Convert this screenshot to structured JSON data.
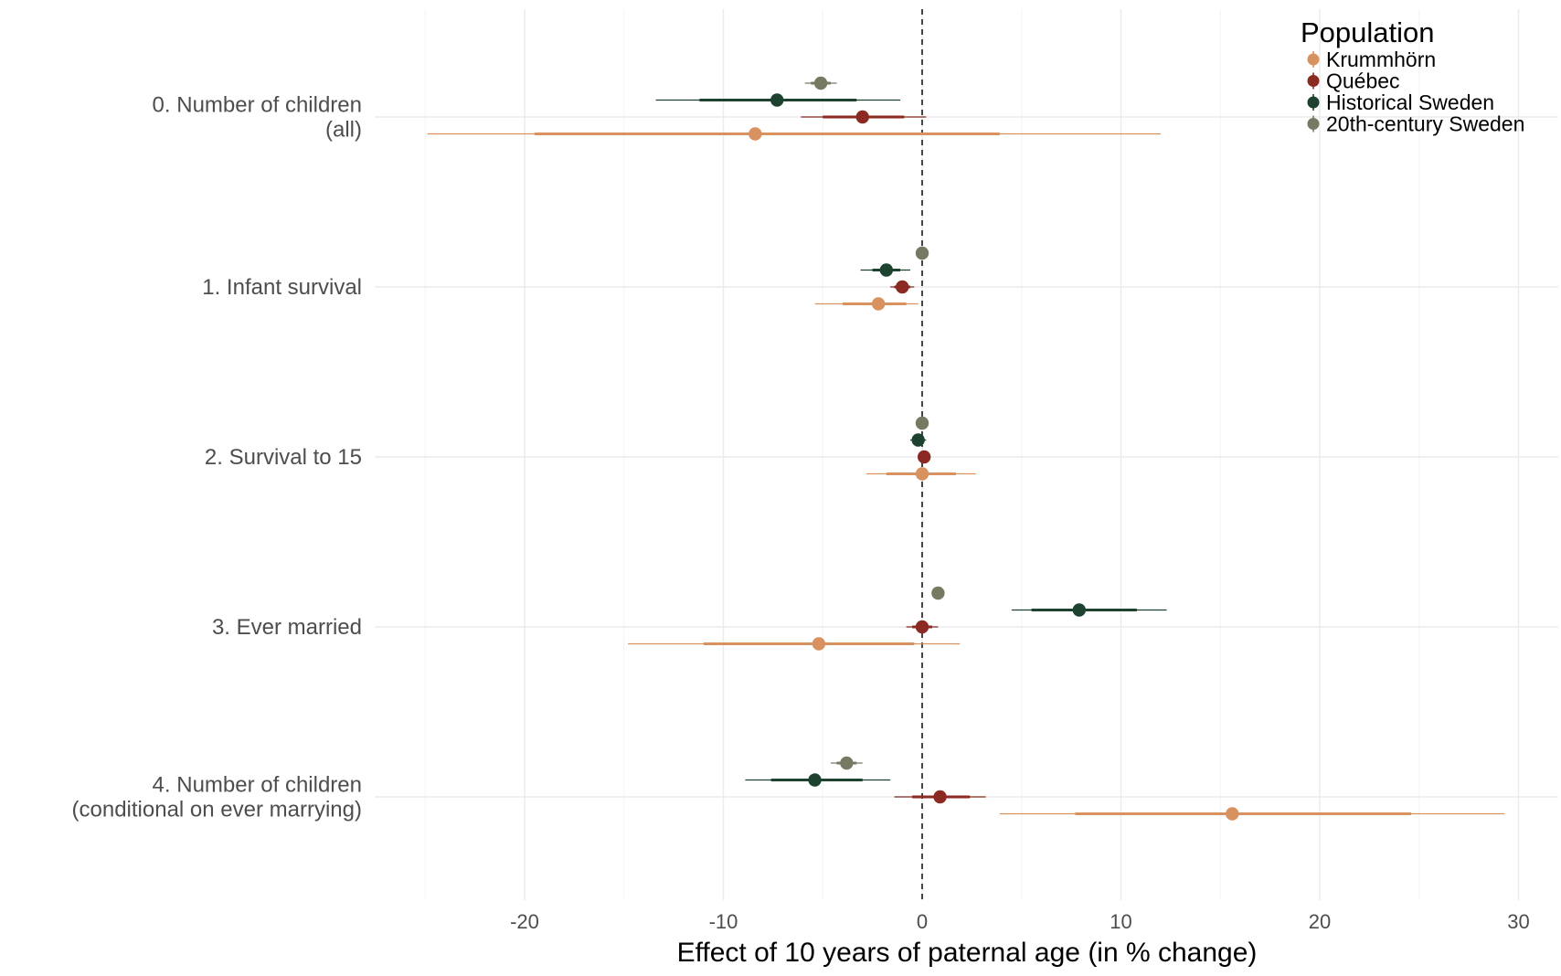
{
  "chart_data": {
    "type": "scatter",
    "subtype": "coefficient-plot",
    "title": "",
    "xlabel": "Effect of 10 years of paternal age (in % change)",
    "ylabel": "",
    "xlim": [
      -25.5,
      32
    ],
    "xticks": [
      -20,
      -10,
      0,
      10,
      20,
      30
    ],
    "xtick_labels": [
      "-20",
      "-10",
      "0",
      "10",
      "20",
      "30"
    ],
    "reference_line": {
      "x": 0,
      "style": "dashed"
    },
    "grid": true,
    "legend": {
      "title": "Population",
      "position": "top-right"
    },
    "outcomes": [
      {
        "key": "o0",
        "lines": [
          "0. Number of children",
          "(all)"
        ]
      },
      {
        "key": "o1",
        "lines": [
          "1. Infant survival"
        ]
      },
      {
        "key": "o2",
        "lines": [
          "2. Survival to 15"
        ]
      },
      {
        "key": "o3",
        "lines": [
          "3. Ever married"
        ]
      },
      {
        "key": "o4",
        "lines": [
          "4. Number of children",
          "(conditional on ever marrying)"
        ]
      }
    ],
    "series": [
      {
        "name": "Krummhörn",
        "color": "#D89260",
        "points": [
          {
            "estimate": -8.4,
            "ci_inner": [
              -19.5,
              3.9
            ],
            "ci_outer": [
              -24.9,
              12.0
            ]
          },
          {
            "estimate": -2.2,
            "ci_inner": [
              -4.0,
              -0.8
            ],
            "ci_outer": [
              -5.4,
              -0.2
            ]
          },
          {
            "estimate": 0.0,
            "ci_inner": [
              -1.8,
              1.7
            ],
            "ci_outer": [
              -2.8,
              2.7
            ]
          },
          {
            "estimate": -5.2,
            "ci_inner": [
              -11.0,
              -0.4
            ],
            "ci_outer": [
              -14.8,
              1.9
            ]
          },
          {
            "estimate": 15.6,
            "ci_inner": [
              7.7,
              24.6
            ],
            "ci_outer": [
              3.9,
              29.3
            ]
          }
        ]
      },
      {
        "name": "Québec",
        "color": "#8B2A22",
        "points": [
          {
            "estimate": -3.0,
            "ci_inner": [
              -5.0,
              -0.9
            ],
            "ci_outer": [
              -6.1,
              0.2
            ]
          },
          {
            "estimate": -1.0,
            "ci_inner": [
              -1.4,
              -0.6
            ],
            "ci_outer": [
              -1.6,
              -0.4
            ]
          },
          {
            "estimate": 0.1,
            "ci_inner": [
              0.0,
              0.2
            ],
            "ci_outer": [
              -0.05,
              0.3
            ]
          },
          {
            "estimate": 0.0,
            "ci_inner": [
              -0.5,
              0.5
            ],
            "ci_outer": [
              -0.8,
              0.8
            ]
          },
          {
            "estimate": 0.9,
            "ci_inner": [
              -0.5,
              2.4
            ],
            "ci_outer": [
              -1.4,
              3.2
            ]
          }
        ]
      },
      {
        "name": "Historical Sweden",
        "color": "#1E4230",
        "points": [
          {
            "estimate": -7.3,
            "ci_inner": [
              -11.2,
              -3.3
            ],
            "ci_outer": [
              -13.4,
              -1.1
            ]
          },
          {
            "estimate": -1.8,
            "ci_inner": [
              -2.5,
              -1.1
            ],
            "ci_outer": [
              -3.1,
              -0.6
            ]
          },
          {
            "estimate": -0.2,
            "ci_inner": [
              -0.4,
              0.0
            ],
            "ci_outer": [
              -0.6,
              0.2
            ]
          },
          {
            "estimate": 7.9,
            "ci_inner": [
              5.5,
              10.8
            ],
            "ci_outer": [
              4.5,
              12.3
            ]
          },
          {
            "estimate": -5.4,
            "ci_inner": [
              -7.6,
              -3.0
            ],
            "ci_outer": [
              -8.9,
              -1.6
            ]
          }
        ]
      },
      {
        "name": "20th-century Sweden",
        "color": "#777A63",
        "points": [
          {
            "estimate": -5.1,
            "ci_inner": [
              -5.6,
              -4.6
            ],
            "ci_outer": [
              -5.9,
              -4.3
            ]
          },
          {
            "estimate": 0.0,
            "ci_inner": [
              -0.1,
              0.1
            ],
            "ci_outer": [
              -0.2,
              0.2
            ]
          },
          {
            "estimate": 0.0,
            "ci_inner": [
              -0.05,
              0.1
            ],
            "ci_outer": [
              -0.1,
              0.15
            ]
          },
          {
            "estimate": 0.8,
            "ci_inner": [
              0.6,
              1.0
            ],
            "ci_outer": [
              0.5,
              1.1
            ]
          },
          {
            "estimate": -3.8,
            "ci_inner": [
              -4.3,
              -3.3
            ],
            "ci_outer": [
              -4.6,
              -3.0
            ]
          }
        ]
      }
    ]
  }
}
